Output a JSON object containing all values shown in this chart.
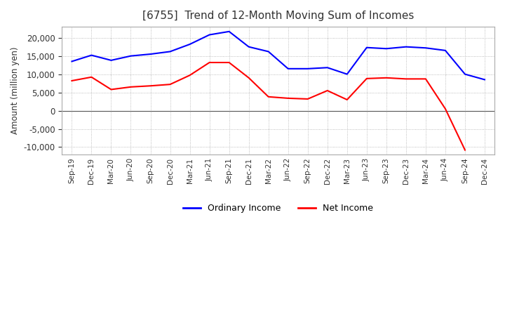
{
  "title": "[6755]  Trend of 12-Month Moving Sum of Incomes",
  "ylabel": "Amount (million yen)",
  "ylim": [
    -12000,
    23000
  ],
  "yticks": [
    -10000,
    -5000,
    0,
    5000,
    10000,
    15000,
    20000
  ],
  "ordinary_income_color": "#0000FF",
  "net_income_color": "#FF0000",
  "background_color": "#FFFFFF",
  "grid_color": "#AAAAAA",
  "x_labels": [
    "Sep-19",
    "Dec-19",
    "Mar-20",
    "Jun-20",
    "Sep-20",
    "Dec-20",
    "Mar-21",
    "Jun-21",
    "Sep-21",
    "Dec-21",
    "Mar-22",
    "Jun-22",
    "Sep-22",
    "Dec-22",
    "Mar-23",
    "Jun-23",
    "Sep-23",
    "Dec-23",
    "Mar-24",
    "Jun-24",
    "Sep-24",
    "Dec-24"
  ],
  "ordinary_income": [
    13500,
    15200,
    13800,
    15000,
    15500,
    16200,
    18200,
    20800,
    21700,
    17500,
    16200,
    11500,
    11500,
    11800,
    10000,
    17300,
    17000,
    17500,
    17200,
    16500,
    10000,
    8500
  ],
  "net_income": [
    8200,
    9200,
    5800,
    6500,
    6800,
    7200,
    9700,
    13200,
    13200,
    9000,
    3800,
    3400,
    3200,
    5500,
    3000,
    8800,
    9000,
    8700,
    8700,
    500,
    -10800,
    null
  ]
}
